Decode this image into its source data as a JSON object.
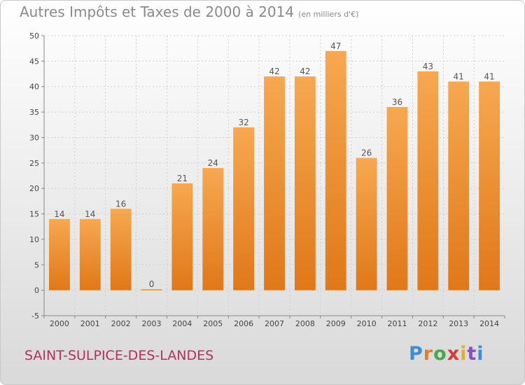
{
  "chart_data": {
    "type": "bar",
    "title": "Autres Impôts et Taxes de 2000 à 2014",
    "subtitle": "(en milliers d'€)",
    "categories": [
      "2000",
      "2001",
      "2002",
      "2003",
      "2004",
      "2005",
      "2006",
      "2007",
      "2008",
      "2009",
      "2010",
      "2011",
      "2012",
      "2013",
      "2014"
    ],
    "values": [
      14,
      14,
      16,
      0,
      21,
      24,
      32,
      42,
      42,
      47,
      26,
      36,
      43,
      41,
      41
    ],
    "ylim": [
      -5,
      50
    ],
    "yticks": [
      -5,
      0,
      5,
      10,
      15,
      20,
      25,
      30,
      35,
      40,
      45,
      50
    ],
    "grid": true,
    "bar_color": "#f08a2c",
    "xlabel": "",
    "ylabel": ""
  },
  "footer": {
    "commune": "SAINT-SULPICE-DES-LANDES"
  },
  "logo": {
    "letters": [
      "P",
      "r",
      "o",
      "x",
      "i",
      "t",
      "i"
    ]
  }
}
